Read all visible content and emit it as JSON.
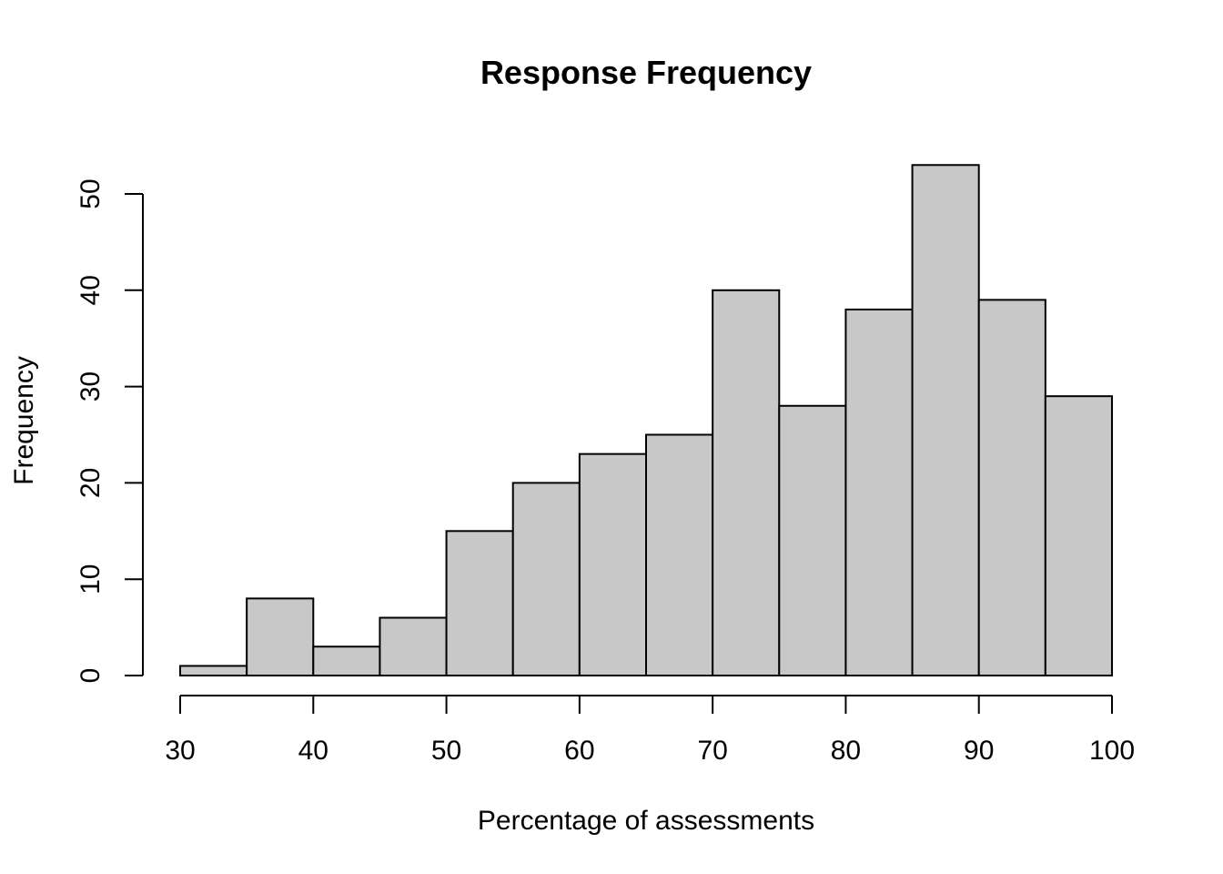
{
  "chart_data": {
    "type": "bar",
    "subtype": "histogram",
    "title": "Response Frequency",
    "xlabel": "Percentage of assessments",
    "ylabel": "Frequency",
    "bins": [
      {
        "start": 30,
        "end": 35,
        "count": 1
      },
      {
        "start": 35,
        "end": 40,
        "count": 8
      },
      {
        "start": 40,
        "end": 45,
        "count": 3
      },
      {
        "start": 45,
        "end": 50,
        "count": 6
      },
      {
        "start": 50,
        "end": 55,
        "count": 15
      },
      {
        "start": 55,
        "end": 60,
        "count": 20
      },
      {
        "start": 60,
        "end": 65,
        "count": 23
      },
      {
        "start": 65,
        "end": 70,
        "count": 25
      },
      {
        "start": 70,
        "end": 75,
        "count": 40
      },
      {
        "start": 75,
        "end": 80,
        "count": 28
      },
      {
        "start": 80,
        "end": 85,
        "count": 38
      },
      {
        "start": 85,
        "end": 90,
        "count": 53
      },
      {
        "start": 90,
        "end": 95,
        "count": 39
      },
      {
        "start": 95,
        "end": 100,
        "count": 29
      }
    ],
    "xlim": [
      30,
      100
    ],
    "ylim": [
      0,
      53
    ],
    "x_ticks": [
      30,
      40,
      50,
      60,
      70,
      80,
      90,
      100
    ],
    "y_ticks": [
      0,
      10,
      20,
      30,
      40,
      50
    ],
    "grid": false,
    "legend": "none",
    "bar_color": "#c8c8c8",
    "edge_color": "#000000"
  }
}
